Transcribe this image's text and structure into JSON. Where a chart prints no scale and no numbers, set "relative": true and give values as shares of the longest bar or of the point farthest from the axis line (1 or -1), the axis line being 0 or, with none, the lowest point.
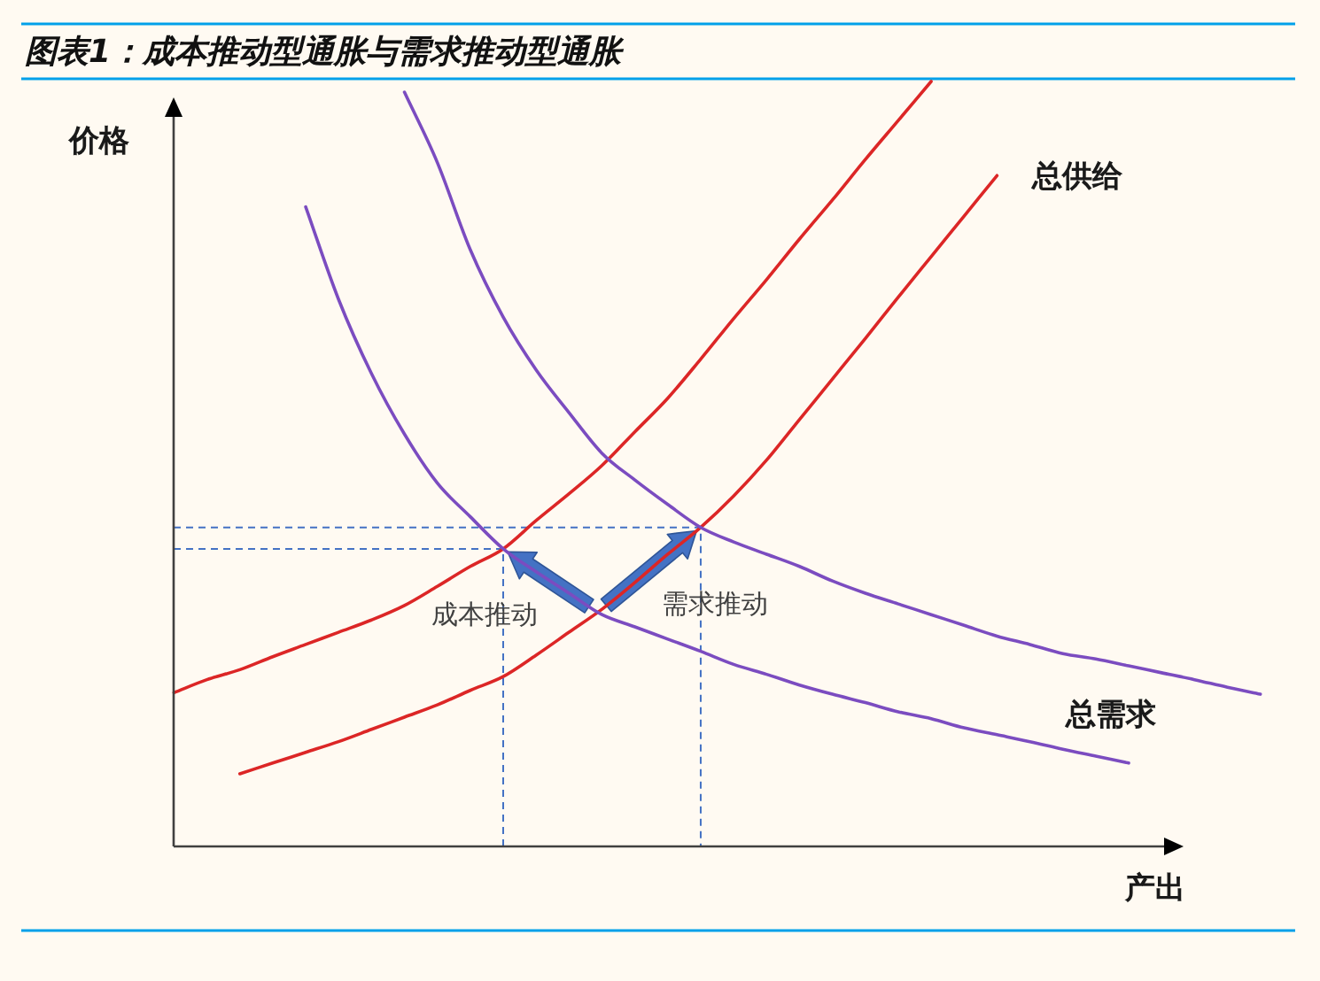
{
  "chart_data": {
    "type": "line",
    "title": "图表1：成本推动型通胀与需求推动型通胀",
    "xlabel": "产出",
    "ylabel": "价格",
    "relative": true,
    "categories": [
      null,
      null,
      null,
      null,
      null,
      null,
      null,
      null,
      null,
      null,
      null,
      null,
      null,
      null,
      null,
      null,
      null,
      null,
      null,
      null,
      null,
      null,
      null,
      null,
      null,
      null,
      null,
      null,
      null,
      null,
      null,
      null,
      null,
      null
    ],
    "series": [
      {
        "color": "#dc2626",
        "values": [
          0.201,
          0.218,
          0.231,
          0.248,
          0.264,
          0.28,
          0.296,
          0.315,
          0.34,
          0.366,
          0.389,
          0.426,
          0.461,
          0.498,
          0.542,
          0.586,
          0.637,
          0.69,
          0.741,
          0.794,
          0.845,
          0.898,
          0.949,
          1,
          null,
          null,
          null,
          null,
          null,
          null,
          null,
          null,
          null,
          null
        ]
      },
      {
        "name": "总供给",
        "color": "#dc2626",
        "values": [
          null,
          null,
          0.095,
          0.109,
          0.123,
          0.137,
          0.153,
          0.169,
          0.185,
          0.204,
          0.222,
          0.25,
          0.28,
          0.31,
          0.345,
          0.382,
          0.417,
          0.458,
          0.505,
          0.558,
          0.611,
          0.664,
          0.718,
          0.771,
          0.824,
          0.877,
          null,
          null,
          null,
          null,
          null,
          null,
          null,
          null
        ]
      },
      {
        "name": "总需求",
        "color": "#7b4cc0",
        "values": [
          null,
          null,
          null,
          null,
          0.836,
          0.715,
          0.618,
          0.539,
          0.475,
          0.431,
          0.389,
          0.359,
          0.331,
          0.303,
          0.287,
          0.271,
          0.255,
          0.238,
          0.225,
          0.211,
          0.199,
          0.188,
          0.176,
          0.167,
          0.155,
          0.146,
          0.137,
          0.127,
          0.118,
          0.109,
          null,
          null,
          null,
          null
        ]
      },
      {
        "color": "#7b4cc0",
        "values": [
          null,
          null,
          null,
          null,
          null,
          null,
          null,
          0.986,
          0.894,
          0.78,
          0.692,
          0.623,
          0.567,
          0.514,
          0.479,
          0.447,
          0.417,
          0.398,
          0.382,
          0.366,
          0.347,
          0.331,
          0.317,
          0.303,
          0.289,
          0.275,
          0.264,
          0.252,
          0.245,
          0.236,
          0.227,
          0.218,
          0.208,
          0.199
        ]
      }
    ],
    "ref_lines": [
      {
        "axis": "y",
        "value": 0.389,
        "color": "#4472c4",
        "line_style": "dashed"
      },
      {
        "axis": "y",
        "value": 0.417,
        "color": "#4472c4",
        "line_style": "dashed"
      }
    ],
    "annotations": [
      "成本推动",
      "需求推动"
    ]
  }
}
